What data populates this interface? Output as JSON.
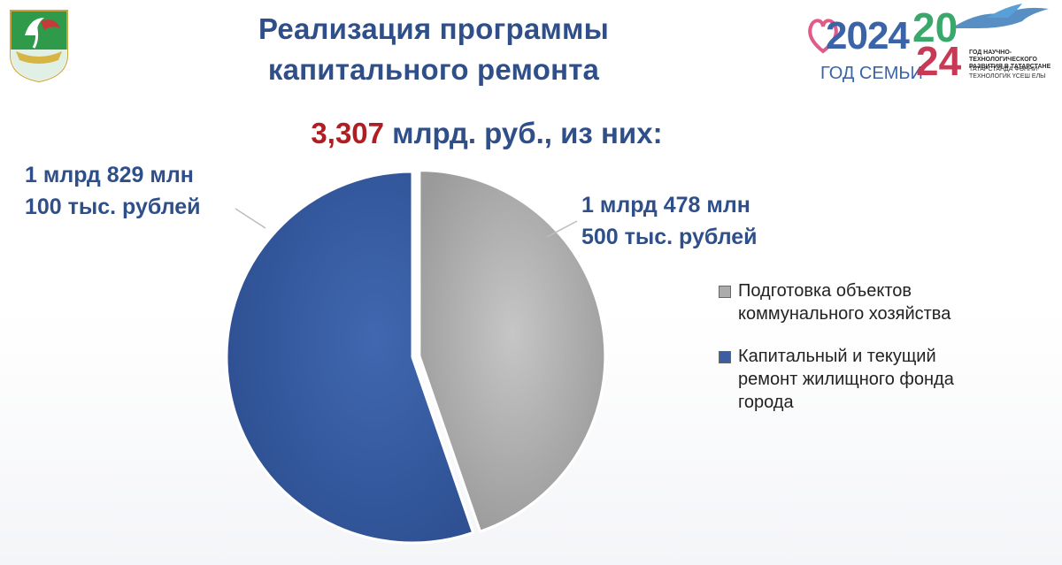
{
  "header": {
    "title_line1": "Реализация программы",
    "title_line2": "капитального ремонта"
  },
  "logo": {
    "year": "2024",
    "subtitle": "ГОД СЕМЬИ",
    "big_year_top": "20",
    "big_year_bottom": "24",
    "caption_ru": "ГОД НАУЧНО-ТЕХНОЛОГИЧЕСКОГО РАЗВИТИЯ В ТАТАРСТАНЕ",
    "caption_tt": "ТАТАРСТАНДА ФӘННИ-ТЕХНОЛОГИК ҮСЕШ ЕЛЫ"
  },
  "total": {
    "amount": "3,307",
    "suffix": " млрд. руб., из них:"
  },
  "chart_data": {
    "type": "pie",
    "title": "3,307 млрд. руб., из них:",
    "slices": [
      {
        "name": "Подготовка объектов коммунального хозяйства",
        "value": 1478.5,
        "label_line1": "1 млрд 478 млн",
        "label_line2": "500 тыс. рублей",
        "color": "#ababab"
      },
      {
        "name": "Капитальный и текущий ремонт жилищного фонда города",
        "value": 1829.1,
        "label_line1": "1 млрд 829 млн",
        "label_line2": "100 тыс. рублей",
        "color": "#3a5da3"
      }
    ],
    "legend_position": "right"
  },
  "legend": [
    {
      "lines": [
        "Подготовка объектов",
        "коммунального хозяйства"
      ],
      "color": "#ababab"
    },
    {
      "lines": [
        "Капитальный и текущий",
        "ремонт жилищного фонда",
        "города"
      ],
      "color": "#3a5da3"
    }
  ]
}
